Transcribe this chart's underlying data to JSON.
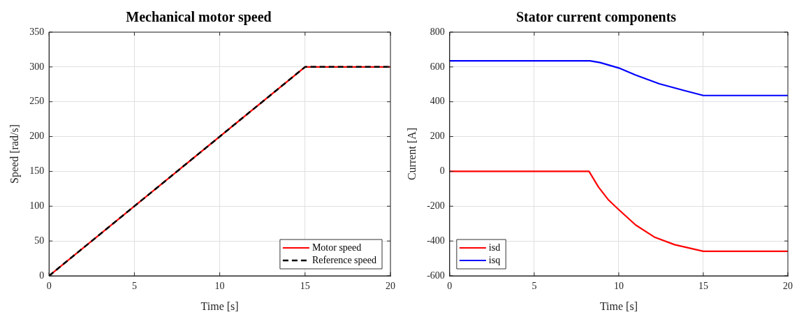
{
  "chart_data": [
    {
      "type": "line",
      "title": "Mechanical motor speed",
      "xlabel": "Time [s]",
      "ylabel": "Speed [rad/s]",
      "xlim": [
        0,
        20
      ],
      "xticks": [
        0,
        5,
        10,
        15,
        20
      ],
      "ylim": [
        0,
        350
      ],
      "yticks": [
        0,
        50,
        100,
        150,
        200,
        250,
        300,
        350
      ],
      "grid": true,
      "legend": "bottom right",
      "series": [
        {
          "name": "Motor speed",
          "color": "#ff0000",
          "x": [
            0,
            15,
            20
          ],
          "values": [
            0,
            300,
            300
          ],
          "line_style": "solid"
        },
        {
          "name": "Reference speed",
          "color": "#000000",
          "x": [
            0,
            15,
            20
          ],
          "values": [
            0,
            300,
            300
          ],
          "line_style": "dashed"
        }
      ]
    },
    {
      "type": "line",
      "title": "Stator current components",
      "xlabel": "Time [s]",
      "ylabel": "Current [A]",
      "xlim": [
        0,
        20
      ],
      "xticks": [
        0,
        5,
        10,
        15,
        20
      ],
      "ylim": [
        -600,
        800
      ],
      "yticks": [
        -600,
        -400,
        -200,
        0,
        200,
        400,
        600,
        800
      ],
      "grid": true,
      "legend": "bottom left",
      "series": [
        {
          "name": "isd",
          "color": "#ff0000",
          "x": [
            0,
            8.24,
            8.8,
            9.4,
            10,
            11,
            12.1,
            13.3,
            15,
            20
          ],
          "values": [
            0,
            0,
            -90,
            -165,
            -220,
            -308,
            -377,
            -421,
            -459,
            -459
          ],
          "line_style": "solid"
        },
        {
          "name": "isq",
          "color": "#0000ff",
          "x": [
            0,
            8.3,
            8.9,
            10,
            11,
            12.4,
            13.85,
            15,
            20
          ],
          "values": [
            635,
            635,
            625,
            594,
            553,
            503,
            465,
            436,
            436
          ],
          "line_style": "solid"
        }
      ]
    }
  ]
}
